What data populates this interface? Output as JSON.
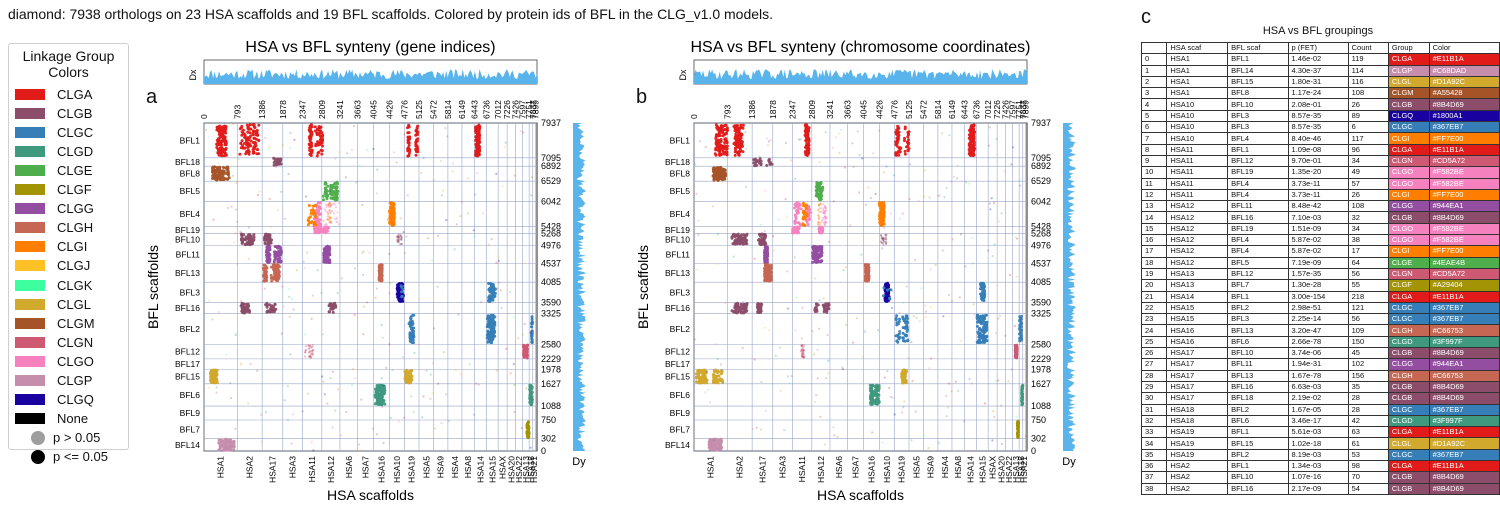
{
  "caption": "diamond: 7938 orthologs on 23 HSA scaffolds and 19 BFL scaffolds. Colored by protein ids of BFL in the CLG_v1.0 models.",
  "legend": {
    "title_line1": "Linkage Group",
    "title_line2": "Colors",
    "items": [
      {
        "label": "CLGA",
        "color": "#E11B1A"
      },
      {
        "label": "CLGB",
        "color": "#8B4D69"
      },
      {
        "label": "CLGC",
        "color": "#367EB7"
      },
      {
        "label": "CLGD",
        "color": "#3F997F"
      },
      {
        "label": "CLGE",
        "color": "#4EAE4B"
      },
      {
        "label": "CLGF",
        "color": "#A29404"
      },
      {
        "label": "CLGG",
        "color": "#944EA1"
      },
      {
        "label": "CLGH",
        "color": "#C66753"
      },
      {
        "label": "CLGI",
        "color": "#FF7E00"
      },
      {
        "label": "CLGJ",
        "color": "#FFC125"
      },
      {
        "label": "CLGK",
        "color": "#3DFFA0"
      },
      {
        "label": "CLGL",
        "color": "#D1A92C"
      },
      {
        "label": "CLGM",
        "color": "#A55428"
      },
      {
        "label": "CLGN",
        "color": "#CD5A72"
      },
      {
        "label": "CLGO",
        "color": "#F582BE"
      },
      {
        "label": "CLGP",
        "color": "#C68DAD"
      },
      {
        "label": "CLGQ",
        "color": "#1800A1"
      },
      {
        "label": "None",
        "color": "#000000"
      }
    ],
    "p_high": "p > 0.05",
    "p_low": "p <= 0.05"
  },
  "panel_a_label": "a",
  "panel_b_label": "b",
  "panel_c_label": "c",
  "chart_data": [
    {
      "type": "scatter",
      "title": "HSA vs BFL synteny (gene indices)",
      "xlabel": "HSA scaffolds",
      "ylabel": "BFL scaffolds",
      "dx_label": "Dx",
      "dy_label": "Dy",
      "x_tick_top": [
        0,
        793,
        1386,
        1878,
        2347,
        2809,
        3241,
        3663,
        4045,
        4426,
        4776,
        5125,
        5472,
        5814,
        6149,
        6443,
        6736,
        7012,
        7226,
        7426,
        7597,
        7751,
        7837,
        7899
      ],
      "x_scaffolds": [
        "HSA1",
        "HSA2",
        "HSA17",
        "HSA3",
        "HSA11",
        "HSA12",
        "HSA6",
        "HSA7",
        "HSA16",
        "HSA10",
        "HSA19",
        "HSA5",
        "HSA9",
        "HSA4",
        "HSA8",
        "HSA14",
        "HSA15",
        "HSAX",
        "HSA20",
        "HSA22",
        "HSA13",
        "HSA18",
        "HSA21"
      ],
      "y_scaffolds": [
        "BFL1",
        "BFL18",
        "BFL8",
        "BFL5",
        "BFL4",
        "BFL19",
        "BFL10",
        "BFL11",
        "BFL13",
        "BFL3",
        "BFL16",
        "BFL2",
        "BFL12",
        "BFL17",
        "BFL15",
        "BFL6",
        "BFL9",
        "BFL7",
        "BFL14"
      ],
      "y_tick_right": [
        7937,
        7095,
        6892,
        6529,
        6042,
        5428,
        5268,
        4976,
        4537,
        4085,
        3590,
        3325,
        2580,
        2229,
        1978,
        1627,
        1088,
        750,
        302,
        0
      ]
    },
    {
      "type": "scatter",
      "title": "HSA vs BFL synteny (chromosome coordinates)",
      "xlabel": "HSA scaffolds",
      "ylabel": "BFL scaffolds",
      "dx_label": "Dx",
      "dy_label": "Dy",
      "x_tick_top": [
        0,
        793,
        1386,
        1878,
        2347,
        2809,
        3241,
        3663,
        4045,
        4426,
        4776,
        5125,
        5472,
        5814,
        6149,
        6443,
        6736,
        7012,
        7226,
        7426,
        7597,
        7751,
        7837,
        7899
      ],
      "x_scaffolds": [
        "HSA1",
        "HSA2",
        "HSA17",
        "HSA3",
        "HSA11",
        "HSA12",
        "HSA6",
        "HSA7",
        "HSA16",
        "HSA10",
        "HSA19",
        "HSA5",
        "HSA9",
        "HSA4",
        "HSA8",
        "HSA14",
        "HSA15",
        "HSAX",
        "HSA20",
        "HSA22",
        "HSA13",
        "HSA18",
        "HSA21"
      ],
      "y_scaffolds": [
        "BFL1",
        "BFL18",
        "BFL8",
        "BFL5",
        "BFL4",
        "BFL19",
        "BFL10",
        "BFL11",
        "BFL13",
        "BFL3",
        "BFL16",
        "BFL2",
        "BFL12",
        "BFL17",
        "BFL15",
        "BFL6",
        "BFL9",
        "BFL7",
        "BFL14"
      ],
      "y_tick_right": [
        7937,
        7095,
        6892,
        6529,
        6042,
        5428,
        5268,
        4976,
        4537,
        4085,
        3590,
        3325,
        2580,
        2229,
        1978,
        1627,
        1088,
        750,
        302,
        0
      ]
    },
    {
      "type": "table",
      "title": "HSA vs BFL groupings",
      "columns": [
        "",
        "HSA scaf",
        "BFL scaf",
        "p (FET)",
        "Count",
        "Group",
        "Color"
      ],
      "rows": [
        [
          "0",
          "HSA1",
          "BFL1",
          "1.46e-02",
          "119",
          "CLGA",
          "#E11B1A"
        ],
        [
          "1",
          "HSA1",
          "BFL14",
          "4.30e-37",
          "114",
          "CLGP",
          "#C68DAD"
        ],
        [
          "2",
          "HSA1",
          "BFL15",
          "1.80e-31",
          "116",
          "CLGL",
          "#D1A92C"
        ],
        [
          "3",
          "HSA1",
          "BFL8",
          "1.17e-24",
          "108",
          "CLGM",
          "#A55428"
        ],
        [
          "4",
          "HSA10",
          "BFL10",
          "2.08e-01",
          "26",
          "CLGB",
          "#8B4D69"
        ],
        [
          "5",
          "HSA10",
          "BFL3",
          "8.57e-35",
          "89",
          "CLGQ",
          "#1800A1"
        ],
        [
          "6",
          "HSA10",
          "BFL3",
          "8.57e-35",
          "6",
          "CLGC",
          "#367EB7"
        ],
        [
          "7",
          "HSA10",
          "BFL4",
          "8.40e-46",
          "117",
          "CLGI",
          "#FF7E00"
        ],
        [
          "8",
          "HSA11",
          "BFL1",
          "1.09e-08",
          "96",
          "CLGA",
          "#E11B1A"
        ],
        [
          "9",
          "HSA11",
          "BFL12",
          "9.70e-01",
          "34",
          "CLGN",
          "#CD5A72"
        ],
        [
          "10",
          "HSA11",
          "BFL19",
          "1.35e-20",
          "49",
          "CLGO",
          "#F582BE"
        ],
        [
          "11",
          "HSA11",
          "BFL4",
          "3.73e-11",
          "57",
          "CLGO",
          "#F582BE"
        ],
        [
          "12",
          "HSA11",
          "BFL4",
          "3.73e-11",
          "26",
          "CLGI",
          "#FF7E00"
        ],
        [
          "13",
          "HSA12",
          "BFL11",
          "8.48e-42",
          "108",
          "CLGG",
          "#944EA1"
        ],
        [
          "14",
          "HSA12",
          "BFL16",
          "7.10e-03",
          "32",
          "CLGB",
          "#8B4D69"
        ],
        [
          "15",
          "HSA12",
          "BFL19",
          "1.51e-09",
          "34",
          "CLGO",
          "#F582BE"
        ],
        [
          "16",
          "HSA12",
          "BFL4",
          "5.87e-02",
          "38",
          "CLGO",
          "#F582BE"
        ],
        [
          "17",
          "HSA12",
          "BFL4",
          "5.87e-02",
          "17",
          "CLGI",
          "#FF7E00"
        ],
        [
          "18",
          "HSA12",
          "BFL5",
          "7.19e-09",
          "64",
          "CLGE",
          "#4EAE4B"
        ],
        [
          "19",
          "HSA13",
          "BFL12",
          "1.57e-35",
          "56",
          "CLGN",
          "#CD5A72"
        ],
        [
          "20",
          "HSA13",
          "BFL7",
          "1.30e-28",
          "55",
          "CLGF",
          "#A29404"
        ],
        [
          "21",
          "HSA14",
          "BFL1",
          "3.00e-154",
          "218",
          "CLGA",
          "#E11B1A"
        ],
        [
          "22",
          "HSA15",
          "BFL2",
          "2.98e-51",
          "121",
          "CLGC",
          "#367EB7"
        ],
        [
          "23",
          "HSA15",
          "BFL3",
          "2.25e-14",
          "56",
          "CLGC",
          "#367EB7"
        ],
        [
          "24",
          "HSA16",
          "BFL13",
          "3.20e-47",
          "109",
          "CLGH",
          "#C66753"
        ],
        [
          "25",
          "HSA16",
          "BFL6",
          "2.66e-78",
          "150",
          "CLGD",
          "#3F997F"
        ],
        [
          "26",
          "HSA17",
          "BFL10",
          "3.74e-06",
          "45",
          "CLGB",
          "#8B4D69"
        ],
        [
          "27",
          "HSA17",
          "BFL11",
          "1.94e-31",
          "102",
          "CLGG",
          "#944EA1"
        ],
        [
          "28",
          "HSA17",
          "BFL13",
          "1.67e-78",
          "156",
          "CLGH",
          "#C66753"
        ],
        [
          "29",
          "HSA17",
          "BFL16",
          "6.63e-03",
          "35",
          "CLGB",
          "#8B4D69"
        ],
        [
          "30",
          "HSA17",
          "BFL18",
          "2.19e-02",
          "28",
          "CLGB",
          "#8B4D69"
        ],
        [
          "31",
          "HSA18",
          "BFL2",
          "1.67e-05",
          "28",
          "CLGC",
          "#367EB7"
        ],
        [
          "32",
          "HSA18",
          "BFL6",
          "3.46e-17",
          "42",
          "CLGD",
          "#3F997F"
        ],
        [
          "33",
          "HSA19",
          "BFL1",
          "5.61e-03",
          "63",
          "CLGA",
          "#E11B1A"
        ],
        [
          "34",
          "HSA19",
          "BFL15",
          "1.02e-18",
          "61",
          "CLGL",
          "#D1A92C"
        ],
        [
          "35",
          "HSA19",
          "BFL2",
          "8.19e-03",
          "53",
          "CLGC",
          "#367EB7"
        ],
        [
          "36",
          "HSA2",
          "BFL1",
          "1.34e-03",
          "98",
          "CLGA",
          "#E11B1A"
        ],
        [
          "37",
          "HSA2",
          "BFL10",
          "1.07e-16",
          "70",
          "CLGB",
          "#8B4D69"
        ],
        [
          "38",
          "HSA2",
          "BFL16",
          "2.17e-09",
          "54",
          "CLGB",
          "#8B4D69"
        ]
      ]
    }
  ]
}
